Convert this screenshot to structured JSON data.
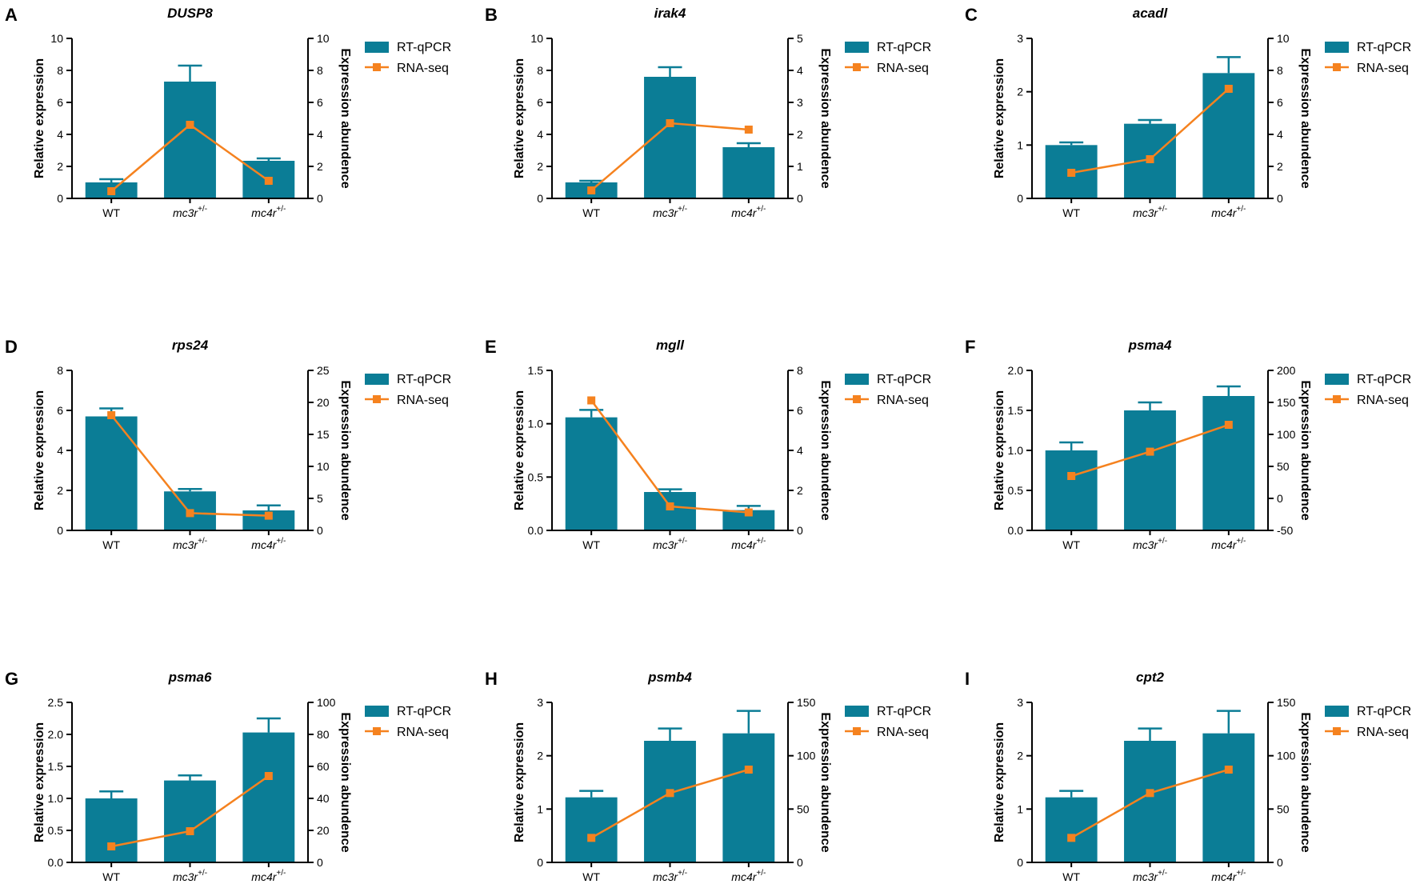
{
  "colors": {
    "bar": "#0b7d96",
    "line": "#f5821f",
    "axis": "#000000"
  },
  "legend": {
    "bar_label": "RT-qPCR",
    "line_label": "RNA-seq"
  },
  "axes": {
    "left_label": "Relative expression",
    "right_label": "Expression abundence"
  },
  "chart_data": [
    {
      "panel": "A",
      "type": "bar+line",
      "title": "DUSP8",
      "categories": [
        {
          "base": "WT",
          "sup": ""
        },
        {
          "base": "mc3r",
          "sup": "+/-"
        },
        {
          "base": "mc4r",
          "sup": "+/-"
        }
      ],
      "left_axis": {
        "min": 0,
        "max": 10,
        "ticks": [
          "0",
          "2",
          "4",
          "6",
          "8",
          "10"
        ]
      },
      "right_axis": {
        "min": 0,
        "max": 10,
        "ticks": [
          "0",
          "2",
          "4",
          "6",
          "8",
          "10"
        ]
      },
      "series": [
        {
          "name": "RT-qPCR",
          "kind": "bar",
          "axis": "left",
          "values": [
            1.0,
            7.3,
            2.35
          ],
          "errors": [
            0.2,
            1.0,
            0.15
          ]
        },
        {
          "name": "RNA-seq",
          "kind": "line",
          "axis": "right",
          "values": [
            0.45,
            4.6,
            1.1
          ]
        }
      ]
    },
    {
      "panel": "B",
      "type": "bar+line",
      "title": "irak4",
      "categories": [
        {
          "base": "WT",
          "sup": ""
        },
        {
          "base": "mc3r",
          "sup": "+/-"
        },
        {
          "base": "mc4r",
          "sup": "+/-"
        }
      ],
      "left_axis": {
        "min": 0,
        "max": 10,
        "ticks": [
          "0",
          "2",
          "4",
          "6",
          "8",
          "10"
        ]
      },
      "right_axis": {
        "min": 0,
        "max": 5,
        "ticks": [
          "0",
          "1",
          "2",
          "3",
          "4",
          "5"
        ]
      },
      "series": [
        {
          "name": "RT-qPCR",
          "kind": "bar",
          "axis": "left",
          "values": [
            1.0,
            7.6,
            3.2
          ],
          "errors": [
            0.1,
            0.6,
            0.25
          ]
        },
        {
          "name": "RNA-seq",
          "kind": "line",
          "axis": "right",
          "values": [
            0.25,
            2.35,
            2.15
          ]
        }
      ]
    },
    {
      "panel": "C",
      "type": "bar+line",
      "title": "acadl",
      "categories": [
        {
          "base": "WT",
          "sup": ""
        },
        {
          "base": "mc3r",
          "sup": "+/-"
        },
        {
          "base": "mc4r",
          "sup": "+/-"
        }
      ],
      "left_axis": {
        "min": 0,
        "max": 3,
        "ticks": [
          "0",
          "1",
          "2",
          "3"
        ]
      },
      "right_axis": {
        "min": 0,
        "max": 10,
        "ticks": [
          "0",
          "2",
          "4",
          "6",
          "8",
          "10"
        ]
      },
      "series": [
        {
          "name": "RT-qPCR",
          "kind": "bar",
          "axis": "left",
          "values": [
            1.0,
            1.4,
            2.35
          ],
          "errors": [
            0.05,
            0.07,
            0.3
          ]
        },
        {
          "name": "RNA-seq",
          "kind": "line",
          "axis": "right",
          "values": [
            1.6,
            2.45,
            6.85
          ]
        }
      ]
    },
    {
      "panel": "D",
      "type": "bar+line",
      "title": "rps24",
      "categories": [
        {
          "base": "WT",
          "sup": ""
        },
        {
          "base": "mc3r",
          "sup": "+/-"
        },
        {
          "base": "mc4r",
          "sup": "+/-"
        }
      ],
      "left_axis": {
        "min": 0,
        "max": 8,
        "ticks": [
          "0",
          "2",
          "4",
          "6",
          "8"
        ]
      },
      "right_axis": {
        "min": 0,
        "max": 25,
        "ticks": [
          "0",
          "5",
          "10",
          "15",
          "20",
          "25"
        ]
      },
      "series": [
        {
          "name": "RT-qPCR",
          "kind": "bar",
          "axis": "left",
          "values": [
            5.7,
            1.95,
            1.0
          ],
          "errors": [
            0.4,
            0.12,
            0.25
          ]
        },
        {
          "name": "RNA-seq",
          "kind": "line",
          "axis": "right",
          "values": [
            18.0,
            2.7,
            2.3
          ]
        }
      ]
    },
    {
      "panel": "E",
      "type": "bar+line",
      "title": "mgll",
      "categories": [
        {
          "base": "WT",
          "sup": ""
        },
        {
          "base": "mc3r",
          "sup": "+/-"
        },
        {
          "base": "mc4r",
          "sup": "+/-"
        }
      ],
      "left_axis": {
        "min": 0,
        "max": 1.5,
        "ticks": [
          "0.0",
          "0.5",
          "1.0",
          "1.5"
        ]
      },
      "right_axis": {
        "min": 0,
        "max": 8,
        "ticks": [
          "0",
          "2",
          "4",
          "6",
          "8"
        ]
      },
      "series": [
        {
          "name": "RT-qPCR",
          "kind": "bar",
          "axis": "left",
          "values": [
            1.06,
            0.36,
            0.19
          ],
          "errors": [
            0.07,
            0.025,
            0.04
          ]
        },
        {
          "name": "RNA-seq",
          "kind": "line",
          "axis": "right",
          "values": [
            6.5,
            1.2,
            0.9
          ]
        }
      ]
    },
    {
      "panel": "F",
      "type": "bar+line",
      "title": "psma4",
      "categories": [
        {
          "base": "WT",
          "sup": ""
        },
        {
          "base": "mc3r",
          "sup": "+/-"
        },
        {
          "base": "mc4r",
          "sup": "+/-"
        }
      ],
      "left_axis": {
        "min": 0,
        "max": 2.0,
        "ticks": [
          "0.0",
          "0.5",
          "1.0",
          "1.5",
          "2.0"
        ]
      },
      "right_axis": {
        "min": -50,
        "max": 200,
        "ticks": [
          "-50",
          "0",
          "50",
          "100",
          "150",
          "200"
        ]
      },
      "series": [
        {
          "name": "RT-qPCR",
          "kind": "bar",
          "axis": "left",
          "values": [
            1.0,
            1.5,
            1.68
          ],
          "errors": [
            0.1,
            0.1,
            0.12
          ]
        },
        {
          "name": "RNA-seq",
          "kind": "line",
          "axis": "right",
          "values": [
            35,
            73,
            115
          ]
        }
      ]
    },
    {
      "panel": "G",
      "type": "bar+line",
      "title": "psma6",
      "categories": [
        {
          "base": "WT",
          "sup": ""
        },
        {
          "base": "mc3r",
          "sup": "+/-"
        },
        {
          "base": "mc4r",
          "sup": "+/-"
        }
      ],
      "left_axis": {
        "min": 0,
        "max": 2.5,
        "ticks": [
          "0.0",
          "0.5",
          "1.0",
          "1.5",
          "2.0",
          "2.5"
        ]
      },
      "right_axis": {
        "min": 0,
        "max": 100,
        "ticks": [
          "0",
          "20",
          "40",
          "60",
          "80",
          "100"
        ]
      },
      "series": [
        {
          "name": "RT-qPCR",
          "kind": "bar",
          "axis": "left",
          "values": [
            1.0,
            1.28,
            2.03
          ],
          "errors": [
            0.11,
            0.08,
            0.22
          ]
        },
        {
          "name": "RNA-seq",
          "kind": "line",
          "axis": "right",
          "values": [
            10,
            19.5,
            54
          ]
        }
      ]
    },
    {
      "panel": "H",
      "type": "bar+line",
      "title": "psmb4",
      "categories": [
        {
          "base": "WT",
          "sup": ""
        },
        {
          "base": "mc3r",
          "sup": "+/-"
        },
        {
          "base": "mc4r",
          "sup": "+/-"
        }
      ],
      "left_axis": {
        "min": 0,
        "max": 3,
        "ticks": [
          "0",
          "1",
          "2",
          "3"
        ]
      },
      "right_axis": {
        "min": 0,
        "max": 150,
        "ticks": [
          "0",
          "50",
          "100",
          "150"
        ]
      },
      "series": [
        {
          "name": "RT-qPCR",
          "kind": "bar",
          "axis": "left",
          "values": [
            1.22,
            2.28,
            2.42
          ],
          "errors": [
            0.12,
            0.23,
            0.42
          ]
        },
        {
          "name": "RNA-seq",
          "kind": "line",
          "axis": "right",
          "values": [
            23,
            65,
            87
          ]
        }
      ]
    },
    {
      "panel": "I",
      "type": "bar+line",
      "title": "cpt2",
      "categories": [
        {
          "base": "WT",
          "sup": ""
        },
        {
          "base": "mc3r",
          "sup": "+/-"
        },
        {
          "base": "mc4r",
          "sup": "+/-"
        }
      ],
      "left_axis": {
        "min": 0,
        "max": 3,
        "ticks": [
          "0",
          "1",
          "2",
          "3"
        ]
      },
      "right_axis": {
        "min": 0,
        "max": 150,
        "ticks": [
          "0",
          "50",
          "100",
          "150"
        ]
      },
      "series": [
        {
          "name": "RT-qPCR",
          "kind": "bar",
          "axis": "left",
          "values": [
            1.22,
            2.28,
            2.42
          ],
          "errors": [
            0.12,
            0.23,
            0.42
          ]
        },
        {
          "name": "RNA-seq",
          "kind": "line",
          "axis": "right",
          "values": [
            23,
            65,
            87
          ]
        }
      ]
    }
  ]
}
